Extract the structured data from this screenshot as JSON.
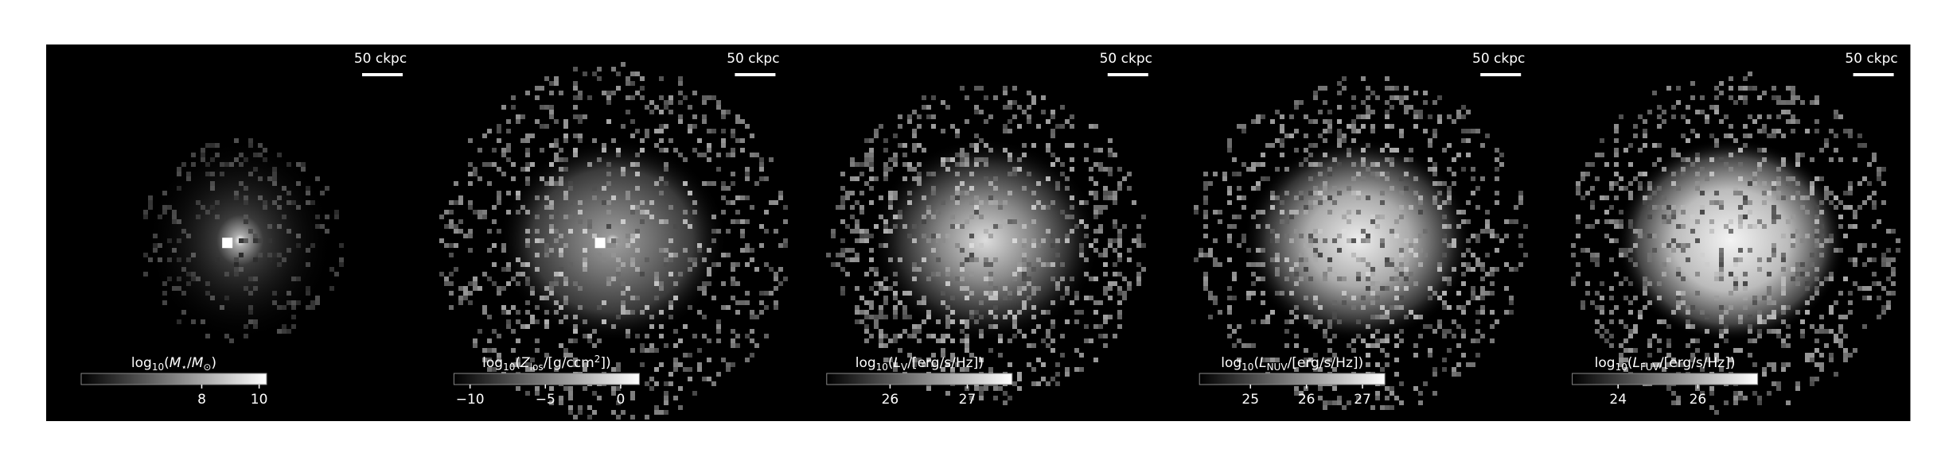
{
  "panels": [
    {
      "scalebar": "50 ckpc",
      "colorbar": {
        "label": [
          {
            "t": "log"
          },
          {
            "t": "10",
            "sub": true
          },
          {
            "t": "("
          },
          {
            "t": "M",
            "it": true
          },
          {
            "t": "⋆",
            "sub": true
          },
          {
            "t": "/"
          },
          {
            "t": "M",
            "it": true
          },
          {
            "t": "⊙",
            "sub": true
          },
          {
            "t": ")"
          }
        ],
        "clim": [
          3.8,
          10.26
        ],
        "ticks": [
          8,
          10
        ]
      }
    },
    {
      "scalebar": "50 ckpc",
      "colorbar": {
        "label": [
          {
            "t": "log"
          },
          {
            "t": "10",
            "sub": true
          },
          {
            "t": "("
          },
          {
            "t": "Z",
            "it": true
          },
          {
            "t": "los",
            "sub": true
          },
          {
            "t": "/[g/ccm"
          },
          {
            "t": "2",
            "sup": true
          },
          {
            "t": "])"
          }
        ],
        "clim": [
          -11.07,
          1.24
        ],
        "ticks": [
          {
            "value": -10,
            "label": "−10"
          },
          {
            "value": -5,
            "label": "−5"
          },
          0
        ]
      }
    },
    {
      "scalebar": "50 ckpc",
      "colorbar": {
        "label": [
          {
            "t": "log"
          },
          {
            "t": "10",
            "sub": true
          },
          {
            "t": "("
          },
          {
            "t": "L",
            "it": true
          },
          {
            "t": "V",
            "sub": true
          },
          {
            "t": "/[erg/s/Hz])"
          }
        ],
        "clim": [
          25.18,
          27.58
        ],
        "ticks": [
          26,
          27
        ]
      }
    },
    {
      "scalebar": "50 ckpc",
      "colorbar": {
        "label": [
          {
            "t": "log"
          },
          {
            "t": "10",
            "sub": true
          },
          {
            "t": "("
          },
          {
            "t": "L",
            "it": true
          },
          {
            "t": "NUV",
            "sub": true
          },
          {
            "t": "/[erg/s/Hz])"
          }
        ],
        "clim": [
          24.09,
          27.4
        ],
        "ticks": [
          25,
          26,
          27
        ]
      }
    },
    {
      "scalebar": "50 ckpc",
      "colorbar": {
        "label": [
          {
            "t": "log"
          },
          {
            "t": "10",
            "sub": true
          },
          {
            "t": "("
          },
          {
            "t": "L",
            "it": true
          },
          {
            "t": "FUV",
            "sub": true
          },
          {
            "t": "/[erg/s/Hz])"
          }
        ],
        "clim": [
          22.85,
          27.5
        ],
        "ticks": [
          24,
          26
        ]
      }
    }
  ]
}
